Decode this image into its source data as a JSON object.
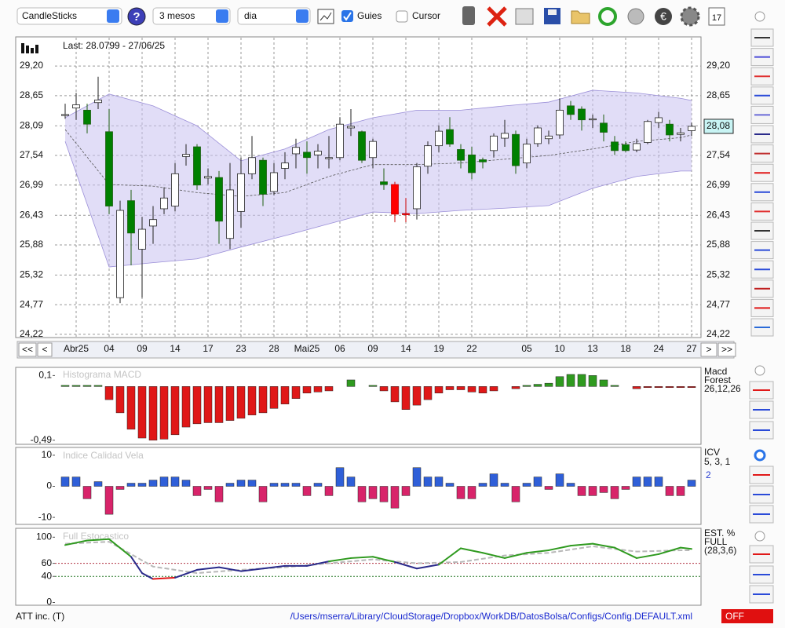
{
  "toolbar": {
    "chart_type": "CandleSticks",
    "period": "3 mesos",
    "interval": "dia",
    "guides": {
      "label": "Guies",
      "checked": true
    },
    "cursor": {
      "label": "Cursor",
      "checked": false
    }
  },
  "price_chart": {
    "type": "candlestick",
    "last": "Last: 28.0799 - 27/06/25",
    "open": [
      28.28,
      28.42,
      28.38,
      28.52,
      27.98,
      24.9,
      26.7,
      25.8,
      26.23,
      26.55,
      26.6,
      27.52,
      27.7,
      27.12,
      27.13,
      26.0,
      26.5,
      27.2,
      27.45,
      26.87,
      27.3,
      27.57,
      27.6,
      27.55,
      27.48,
      27.5,
      28.05,
      27.98,
      27.5,
      27.05,
      27.0,
      26.44,
      26.55,
      27.34,
      27.72,
      28.02,
      27.65,
      27.55,
      27.46,
      27.63,
      27.86,
      27.93,
      27.4,
      27.76,
      27.85,
      27.92,
      28.46,
      28.4,
      28.2,
      28.14,
      27.79,
      27.74,
      27.64,
      27.78,
      28.15,
      28.12,
      27.93,
      28.0
    ],
    "high": [
      28.5,
      28.7,
      28.5,
      29.0,
      28.4,
      26.7,
      26.9,
      26.4,
      26.6,
      26.95,
      27.4,
      27.75,
      27.75,
      27.3,
      27.25,
      27.4,
      27.5,
      27.9,
      27.5,
      27.4,
      27.6,
      27.85,
      27.8,
      27.75,
      27.9,
      28.25,
      28.4,
      28.0,
      27.85,
      27.3,
      27.05,
      26.75,
      27.4,
      27.8,
      28.1,
      28.25,
      27.75,
      27.7,
      27.5,
      27.95,
      28.2,
      28.0,
      27.85,
      28.1,
      28.0,
      28.6,
      28.55,
      28.45,
      28.3,
      28.3,
      27.9,
      27.8,
      27.85,
      28.2,
      28.35,
      28.2,
      28.05,
      28.15
    ],
    "low": [
      28.22,
      28.2,
      27.95,
      28.4,
      26.45,
      24.8,
      25.5,
      24.9,
      25.9,
      26.45,
      26.5,
      27.35,
      26.9,
      27.0,
      25.9,
      25.8,
      26.2,
      27.1,
      26.6,
      26.8,
      27.1,
      27.3,
      27.2,
      27.3,
      27.3,
      27.45,
      27.9,
      27.4,
      27.3,
      26.9,
      26.3,
      26.3,
      26.35,
      27.2,
      27.6,
      27.7,
      27.3,
      27.1,
      27.3,
      27.5,
      27.7,
      27.2,
      27.3,
      27.7,
      27.75,
      27.85,
      28.2,
      28.0,
      28.05,
      27.8,
      27.55,
      27.6,
      27.6,
      27.75,
      28.05,
      27.8,
      27.8,
      27.9
    ],
    "close": [
      28.3,
      28.48,
      28.12,
      28.57,
      26.6,
      26.52,
      26.1,
      26.17,
      26.35,
      26.75,
      27.2,
      27.56,
      26.99,
      27.15,
      26.32,
      26.9,
      27.2,
      27.5,
      26.82,
      27.22,
      27.4,
      27.69,
      27.5,
      27.62,
      27.5,
      28.12,
      28.08,
      27.45,
      27.8,
      27.0,
      26.45,
      26.46,
      27.33,
      27.72,
      27.99,
      27.75,
      27.45,
      27.22,
      27.42,
      27.9,
      27.95,
      27.35,
      27.75,
      28.05,
      27.9,
      28.38,
      28.3,
      28.2,
      28.22,
      27.97,
      27.63,
      27.63,
      27.76,
      28.17,
      28.24,
      27.92,
      27.96,
      28.08
    ],
    "colors": [
      "white",
      "white",
      "green",
      "white",
      "green",
      "white",
      "green",
      "white",
      "white",
      "white",
      "white",
      "white",
      "green",
      "white",
      "green",
      "white",
      "white",
      "white",
      "green",
      "white",
      "white",
      "white",
      "green",
      "white",
      "white",
      "white",
      "white",
      "green",
      "white",
      "green",
      "red",
      "red",
      "white",
      "white",
      "white",
      "green",
      "green",
      "green",
      "green",
      "white",
      "white",
      "green",
      "white",
      "white",
      "white",
      "white",
      "green",
      "green",
      "white",
      "green",
      "green",
      "green",
      "white",
      "white",
      "white",
      "green",
      "white",
      "white"
    ],
    "ylim": [
      24.16,
      29.74
    ],
    "yticks": [
      {
        "value": 29.2,
        "label": "29,20"
      },
      {
        "value": 28.65,
        "label": "28,65"
      },
      {
        "value": 28.09,
        "label": "28,09"
      },
      {
        "value": 27.54,
        "label": "27,54"
      },
      {
        "value": 26.99,
        "label": "26,99"
      },
      {
        "value": 26.43,
        "label": "26,43"
      },
      {
        "value": 25.88,
        "label": "25,88"
      },
      {
        "value": 25.32,
        "label": "25,32"
      },
      {
        "value": 24.77,
        "label": "24,77"
      },
      {
        "value": 24.22,
        "label": "24,22"
      }
    ],
    "x_labels": [
      {
        "index": 1,
        "label": "Abr25"
      },
      {
        "index": 4,
        "label": "04"
      },
      {
        "index": 7,
        "label": "09"
      },
      {
        "index": 10,
        "label": "14"
      },
      {
        "index": 13,
        "label": "17"
      },
      {
        "index": 16,
        "label": "23"
      },
      {
        "index": 19,
        "label": "28"
      },
      {
        "index": 22,
        "label": "Mai25"
      },
      {
        "index": 25,
        "label": "06"
      },
      {
        "index": 28,
        "label": "09"
      },
      {
        "index": 31,
        "label": "14"
      },
      {
        "index": 34,
        "label": "19"
      },
      {
        "index": 37,
        "label": "22"
      },
      {
        "index": 42,
        "label": "05"
      },
      {
        "index": 45,
        "label": "10"
      },
      {
        "index": 48,
        "label": "13"
      },
      {
        "index": 51,
        "label": "18"
      },
      {
        "index": 54,
        "label": "24"
      },
      {
        "index": 57,
        "label": "27"
      }
    ],
    "price_tag": {
      "value": 28.08,
      "label": "28,08"
    },
    "bands": {
      "color": "#c9c1f0",
      "x": [
        0,
        4,
        8,
        12,
        16,
        20,
        24,
        28,
        32,
        36,
        40,
        44,
        48,
        52,
        56,
        57
      ],
      "upper": [
        28.24,
        28.68,
        28.46,
        28.09,
        27.44,
        27.66,
        28.02,
        28.24,
        28.38,
        28.38,
        28.46,
        28.53,
        28.75,
        28.7,
        28.6,
        28.56
      ],
      "lower": [
        27.8,
        25.47,
        25.55,
        25.62,
        25.84,
        26.05,
        26.27,
        26.49,
        26.46,
        26.52,
        26.56,
        26.61,
        26.93,
        27.15,
        27.25,
        27.25
      ],
      "middle": [
        28.02,
        27.0,
        26.97,
        26.85,
        26.78,
        26.85,
        27.15,
        27.37,
        27.37,
        27.4,
        27.47,
        27.54,
        27.66,
        27.8,
        27.87,
        27.92
      ]
    },
    "nav": [
      "<<",
      "<",
      ">",
      ">>"
    ]
  },
  "macd": {
    "type": "bar",
    "title": "Histograma MACD",
    "name": "Macd",
    "name2": "Forest",
    "params": "26,12,26",
    "values": [
      0.01,
      0.01,
      0.01,
      0.01,
      -0.12,
      -0.24,
      -0.39,
      -0.47,
      -0.49,
      -0.48,
      -0.44,
      -0.37,
      -0.34,
      -0.33,
      -0.33,
      -0.31,
      -0.29,
      -0.26,
      -0.24,
      -0.2,
      -0.16,
      -0.11,
      -0.06,
      -0.05,
      -0.04,
      0.0,
      0.06,
      0.0,
      0.01,
      -0.04,
      -0.14,
      -0.21,
      -0.17,
      -0.12,
      -0.06,
      -0.03,
      -0.03,
      -0.05,
      -0.06,
      -0.04,
      0.0,
      -0.02,
      0.01,
      0.02,
      0.03,
      0.09,
      0.11,
      0.11,
      0.1,
      0.06,
      0.01,
      0.0,
      -0.02,
      -0.01,
      -0.01,
      -0.01,
      -0.01,
      -0.01
    ],
    "positive_color": "#2f9a1f",
    "negative_color": "#e01818",
    "ylim": [
      -0.52,
      0.16
    ],
    "yticks": [
      {
        "value": 0.1,
        "label": "0,1"
      },
      {
        "value": -0.49,
        "label": "-0,49"
      }
    ]
  },
  "icv": {
    "type": "bar",
    "title": "Indice Calidad Vela",
    "name": "ICV",
    "params": "5, 3, 1",
    "level": "2",
    "values": [
      3,
      3,
      -4,
      1.5,
      -9,
      -1,
      1,
      1,
      2,
      3,
      3,
      2,
      -3,
      -1,
      -5,
      1,
      2,
      2,
      -5,
      1,
      1,
      1,
      -3,
      1,
      -3,
      6,
      3,
      -5,
      -4,
      -5,
      -7,
      -3,
      6,
      3,
      3,
      1,
      -4,
      -4,
      1,
      4,
      1,
      -5,
      1,
      3,
      -1,
      4,
      1,
      -3,
      -3,
      -2,
      -4,
      -1,
      3,
      3,
      3,
      -3,
      -3,
      2
    ],
    "positive_color": "#2f5fd8",
    "negative_color": "#d8246a",
    "ylim": [
      -12,
      12
    ],
    "yticks": [
      10,
      0,
      -10
    ]
  },
  "stochastic": {
    "type": "line",
    "title": "Full Estocastico",
    "name": "EST. %",
    "name2": "FULL",
    "params": "(28,3,6)",
    "k_x": [
      0,
      2,
      4,
      6,
      7,
      8,
      10,
      12,
      14,
      16,
      18,
      20,
      22,
      24,
      26,
      28,
      30,
      32,
      34,
      36,
      38,
      40,
      42,
      44,
      46,
      48,
      50,
      52,
      54,
      56,
      57
    ],
    "k": [
      88,
      95,
      97,
      70,
      45,
      36,
      38,
      50,
      54,
      48,
      52,
      56,
      56,
      63,
      68,
      70,
      62,
      52,
      58,
      83,
      76,
      68,
      76,
      80,
      87,
      90,
      84,
      68,
      74,
      84,
      82
    ],
    "d_x": [
      0,
      4,
      8,
      12,
      16,
      20,
      24,
      28,
      32,
      36,
      40,
      44,
      48,
      52,
      56,
      57
    ],
    "d": [
      90,
      93,
      55,
      45,
      50,
      54,
      60,
      66,
      60,
      62,
      72,
      76,
      86,
      78,
      80,
      80
    ],
    "high_color": "#2f9a1f",
    "mid_color": "#2a2a8a",
    "low_color": "#e01818",
    "d_color": "#b8b8b8",
    "levels": [
      {
        "value": 60,
        "color": "#b03040"
      },
      {
        "value": 40,
        "color": "#2a7a2a"
      }
    ],
    "ylim": [
      -3,
      110
    ],
    "yticks": [
      100,
      60,
      40,
      0
    ]
  },
  "footer": {
    "symbol": "ATT inc. (T)",
    "path": "/Users/mserra/Library/CloudStorage/Dropbox/WorkDB/DatosBolsa/Configs/Config.DEFAULT.xml",
    "status": "OFF"
  }
}
